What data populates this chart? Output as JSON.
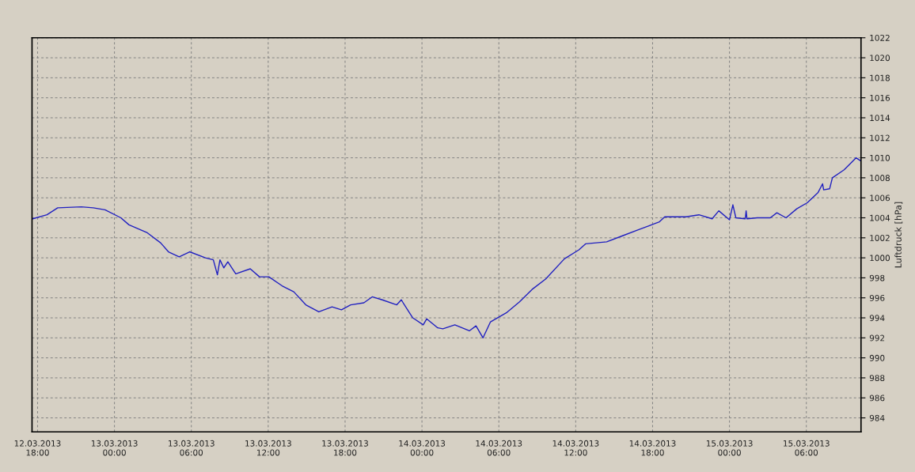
{
  "chart_data": {
    "type": "line",
    "ylabel": "Luftdruck [hPa]",
    "x": [
      "2013-03-12T17:37",
      "2013-03-12T18:44",
      "2013-03-12T19:34",
      "2013-03-12T21:25",
      "2013-03-12T22:21",
      "2013-03-12T23:16",
      "2013-03-13T00:30",
      "2013-03-13T01:08",
      "2013-03-13T02:34",
      "2013-03-13T03:36",
      "2013-03-13T04:13",
      "2013-03-13T05:03",
      "2013-03-13T05:52",
      "2013-03-13T07:06",
      "2013-03-13T07:43",
      "2013-03-13T08:02",
      "2013-03-13T08:14",
      "2013-03-13T08:32",
      "2013-03-13T08:51",
      "2013-03-13T09:28",
      "2013-03-13T10:36",
      "2013-03-13T11:19",
      "2013-03-13T12:03",
      "2013-03-13T13:05",
      "2013-03-13T14:00",
      "2013-03-13T14:56",
      "2013-03-13T15:57",
      "2013-03-13T16:59",
      "2013-03-13T17:43",
      "2013-03-13T18:26",
      "2013-03-13T19:28",
      "2013-03-13T20:07",
      "2013-03-13T20:54",
      "2013-03-13T22:02",
      "2013-03-13T22:23",
      "2013-03-13T23:17",
      "2013-03-14T00:06",
      "2013-03-14T00:22",
      "2013-03-14T01:14",
      "2013-03-14T01:38",
      "2013-03-14T02:34",
      "2013-03-14T03:42",
      "2013-03-14T04:13",
      "2013-03-14T04:46",
      "2013-03-14T05:21",
      "2013-03-14T06:35",
      "2013-03-14T07:37",
      "2013-03-14T08:39",
      "2013-03-14T09:40",
      "2013-03-14T11:07",
      "2013-03-14T12:15",
      "2013-03-14T12:46",
      "2013-03-14T14:25",
      "2013-03-14T15:39",
      "2013-03-14T16:53",
      "2013-03-14T17:43",
      "2013-03-14T18:07",
      "2013-03-14T18:32",
      "2013-03-14T18:57",
      "2013-03-14T20:36",
      "2013-03-14T21:37",
      "2013-03-14T22:39",
      "2013-03-14T23:10",
      "2013-03-15T00:00",
      "2013-03-15T00:16",
      "2013-03-15T00:30",
      "2013-03-15T01:14",
      "2013-03-15T01:18",
      "2013-03-15T01:22",
      "2013-03-15T02:10",
      "2013-03-15T03:11",
      "2013-03-15T03:42",
      "2013-03-15T04:25",
      "2013-03-15T05:15",
      "2013-03-15T06:04",
      "2013-03-15T06:54",
      "2013-03-15T07:16",
      "2013-03-15T07:21",
      "2013-03-15T07:49",
      "2013-03-15T08:02",
      "2013-03-15T08:57",
      "2013-03-15T09:34",
      "2013-03-15T09:53",
      "2013-03-15T10:14"
    ],
    "series": [
      {
        "color": "#2020c0",
        "values": [
          1003.9,
          1004.3,
          1005.0,
          1005.1,
          1005.0,
          1004.8,
          1004.0,
          1003.3,
          1002.5,
          1001.5,
          1000.6,
          1000.1,
          1000.6,
          1000.0,
          999.8,
          998.3,
          999.8,
          999.0,
          999.6,
          998.4,
          998.9,
          998.1,
          998.1,
          997.2,
          996.6,
          995.3,
          994.6,
          995.1,
          994.8,
          995.3,
          995.5,
          996.1,
          995.8,
          995.3,
          995.8,
          994.0,
          993.3,
          993.9,
          993.0,
          992.9,
          993.3,
          992.7,
          993.2,
          992.0,
          993.6,
          994.5,
          995.6,
          996.9,
          997.9,
          999.9,
          1000.8,
          1001.4,
          1001.6,
          1002.2,
          1002.8,
          1003.2,
          1003.4,
          1003.6,
          1004.1,
          1004.1,
          1004.3,
          1003.9,
          1004.7,
          1003.8,
          1005.3,
          1004.0,
          1003.9,
          1004.7,
          1003.9,
          1004.0,
          1004.0,
          1004.5,
          1004.0,
          1004.9,
          1005.5,
          1006.5,
          1007.4,
          1006.8,
          1006.9,
          1008.0,
          1008.8,
          1009.6,
          1010.0,
          1009.7
        ]
      }
    ],
    "xlim": [
      "2013-03-12T17:34",
      "2013-03-15T10:16"
    ],
    "xticks": [
      {
        "value": "2013-03-12T18:00",
        "label": "12.03.2013\n18:00"
      },
      {
        "value": "2013-03-13T00:00",
        "label": "13.03.2013\n00:00"
      },
      {
        "value": "2013-03-13T06:00",
        "label": "13.03.2013\n06:00"
      },
      {
        "value": "2013-03-13T12:00",
        "label": "13.03.2013\n12:00"
      },
      {
        "value": "2013-03-13T18:00",
        "label": "13.03.2013\n18:00"
      },
      {
        "value": "2013-03-14T00:00",
        "label": "14.03.2013\n00:00"
      },
      {
        "value": "2013-03-14T06:00",
        "label": "14.03.2013\n06:00"
      },
      {
        "value": "2013-03-14T12:00",
        "label": "14.03.2013\n12:00"
      },
      {
        "value": "2013-03-14T18:00",
        "label": "14.03.2013\n18:00"
      },
      {
        "value": "2013-03-15T00:00",
        "label": "15.03.2013\n00:00"
      },
      {
        "value": "2013-03-15T06:00",
        "label": "15.03.2013\n06:00"
      }
    ],
    "ylim": [
      982.6,
      1022
    ],
    "yticks": [
      984,
      986,
      988,
      990,
      992,
      994,
      996,
      998,
      1000,
      1002,
      1004,
      1006,
      1008,
      1010,
      1012,
      1014,
      1016,
      1018,
      1020,
      1022
    ],
    "grid": true,
    "legend": false,
    "line_style": "solid",
    "marker": "none"
  }
}
